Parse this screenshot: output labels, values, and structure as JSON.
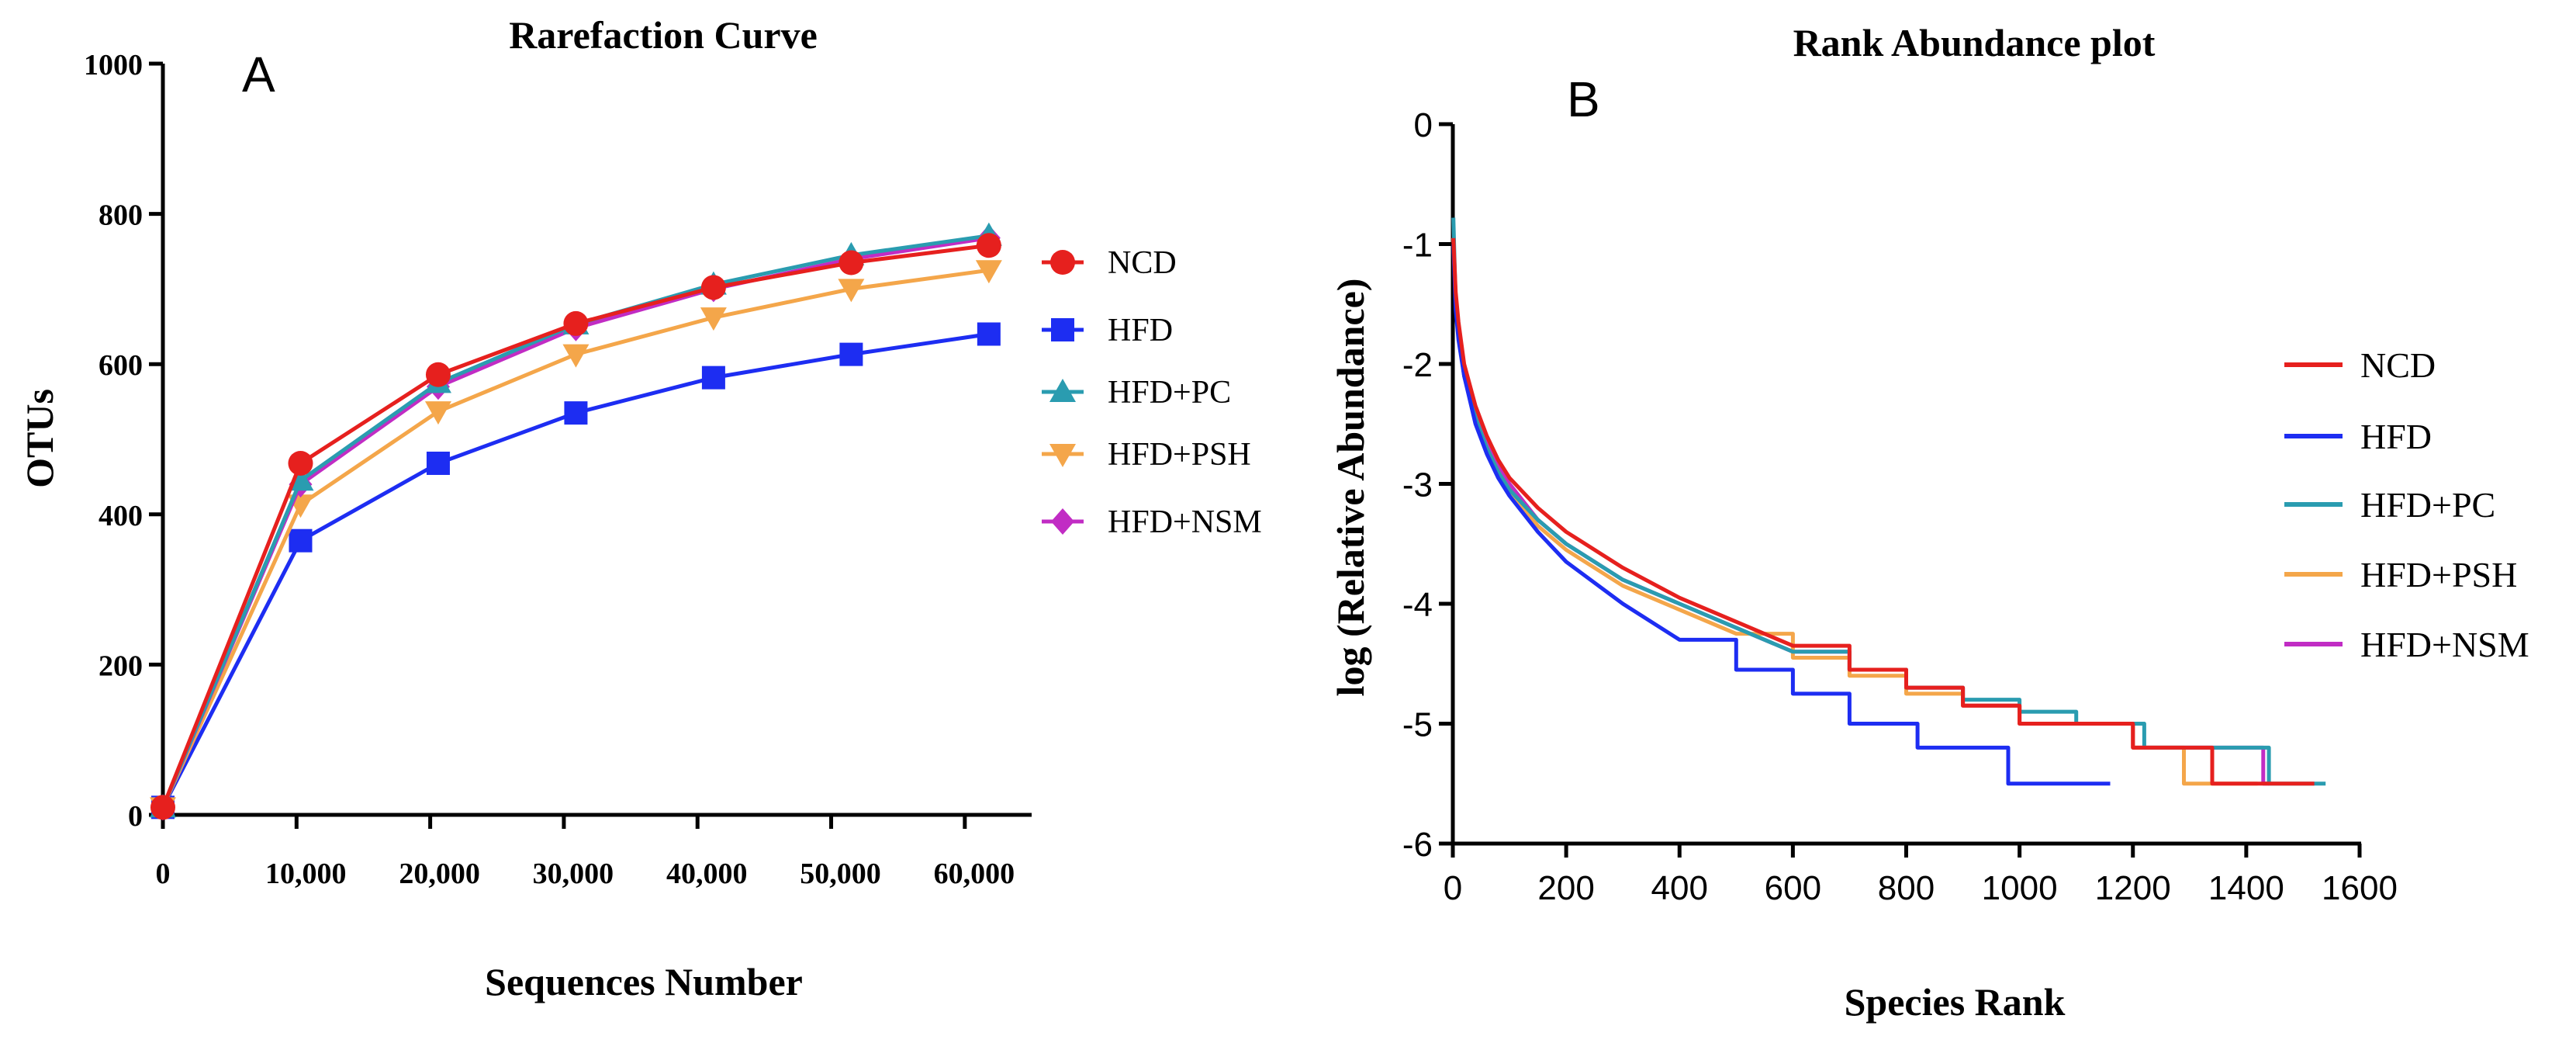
{
  "chart_data": [
    {
      "panel_label": "A",
      "type": "line",
      "title": "Rarefaction Curve",
      "xlabel": "Sequences Number",
      "ylabel": "OTUs",
      "xlim": [
        0,
        65000
      ],
      "ylim": [
        0,
        1000
      ],
      "x_ticks": [
        0,
        10000,
        20000,
        30000,
        40000,
        50000,
        60000
      ],
      "x_tick_labels": [
        "0",
        "10,000",
        "20,000",
        "30,000",
        "40,000",
        "50,000",
        "60,000"
      ],
      "y_ticks": [
        0,
        200,
        400,
        600,
        800,
        1000
      ],
      "y_tick_labels": [
        "0",
        "200",
        "400",
        "600",
        "800",
        "1000"
      ],
      "legend_position": "right",
      "x": [
        0,
        10300,
        20600,
        30900,
        41200,
        51500,
        61800
      ],
      "series": [
        {
          "name": "NCD",
          "color": "#e6201e",
          "marker": "circle",
          "values": [
            10,
            468,
            586,
            654,
            702,
            735,
            758
          ]
        },
        {
          "name": "HFD",
          "color": "#1d2df2",
          "marker": "square",
          "values": [
            10,
            365,
            468,
            535,
            582,
            613,
            640
          ]
        },
        {
          "name": "HFD+PC",
          "color": "#2a9cb0",
          "marker": "triangle-up",
          "values": [
            10,
            445,
            575,
            653,
            706,
            745,
            771
          ]
        },
        {
          "name": "HFD+PSH",
          "color": "#f4a64a",
          "marker": "triangle-down",
          "values": [
            10,
            413,
            537,
            613,
            662,
            700,
            725
          ]
        },
        {
          "name": "HFD+NSM",
          "color": "#c12cc4",
          "marker": "diamond",
          "values": [
            10,
            440,
            570,
            648,
            700,
            740,
            768
          ]
        }
      ]
    },
    {
      "panel_label": "B",
      "type": "line",
      "title": "Rank Abundance plot",
      "xlabel": "Species Rank",
      "ylabel": "log (Relative Abundance)",
      "xlim": [
        0,
        1600
      ],
      "ylim": [
        -6,
        0
      ],
      "x_ticks": [
        0,
        200,
        400,
        600,
        800,
        1000,
        1200,
        1400,
        1600
      ],
      "x_tick_labels": [
        "0",
        "200",
        "400",
        "600",
        "800",
        "1000",
        "1200",
        "1400",
        "1600"
      ],
      "y_ticks": [
        0,
        -1,
        -2,
        -3,
        -4,
        -5,
        -6
      ],
      "y_tick_labels": [
        "0",
        "-1",
        "-2",
        "-3",
        "-4",
        "-5",
        "-6"
      ],
      "legend_position": "right",
      "series": [
        {
          "name": "NCD",
          "color": "#e6201e",
          "x": [
            1,
            5,
            10,
            20,
            40,
            60,
            80,
            100,
            150,
            200,
            300,
            400,
            500,
            600,
            700,
            800,
            900,
            1000,
            1100,
            1200,
            1340,
            1520
          ],
          "values": [
            -0.95,
            -1.4,
            -1.65,
            -2.0,
            -2.35,
            -2.6,
            -2.8,
            -2.95,
            -3.2,
            -3.4,
            -3.7,
            -3.95,
            -4.15,
            -4.35,
            -4.55,
            -4.7,
            -4.85,
            -5.0,
            -5.0,
            -5.2,
            -5.5,
            -5.5
          ]
        },
        {
          "name": "HFD",
          "color": "#1d2df2",
          "x": [
            1,
            5,
            10,
            20,
            40,
            60,
            80,
            100,
            150,
            200,
            300,
            400,
            500,
            600,
            700,
            820,
            980,
            1160
          ],
          "values": [
            -1.0,
            -1.55,
            -1.8,
            -2.1,
            -2.5,
            -2.75,
            -2.95,
            -3.1,
            -3.4,
            -3.65,
            -4.0,
            -4.3,
            -4.55,
            -4.75,
            -5.0,
            -5.2,
            -5.5,
            -5.5
          ]
        },
        {
          "name": "HFD+PC",
          "color": "#2a9cb0",
          "x": [
            1,
            5,
            10,
            20,
            40,
            60,
            80,
            100,
            150,
            200,
            300,
            400,
            500,
            600,
            700,
            800,
            900,
            1000,
            1100,
            1220,
            1440,
            1540
          ],
          "values": [
            -0.78,
            -1.5,
            -1.75,
            -2.1,
            -2.45,
            -2.7,
            -2.9,
            -3.05,
            -3.3,
            -3.5,
            -3.8,
            -4.0,
            -4.2,
            -4.4,
            -4.55,
            -4.7,
            -4.8,
            -4.9,
            -5.0,
            -5.2,
            -5.5,
            -5.5
          ]
        },
        {
          "name": "HFD+PSH",
          "color": "#f4a64a",
          "x": [
            1,
            5,
            10,
            20,
            40,
            60,
            80,
            100,
            150,
            200,
            300,
            400,
            500,
            600,
            700,
            800,
            900,
            1000,
            1100,
            1200,
            1290,
            1420
          ],
          "values": [
            -0.95,
            -1.5,
            -1.75,
            -2.1,
            -2.45,
            -2.7,
            -2.9,
            -3.05,
            -3.35,
            -3.55,
            -3.85,
            -4.05,
            -4.25,
            -4.45,
            -4.6,
            -4.75,
            -4.85,
            -5.0,
            -5.0,
            -5.2,
            -5.5,
            -5.5
          ]
        },
        {
          "name": "HFD+NSM",
          "color": "#c12cc4",
          "x": [
            1,
            5,
            10,
            20,
            40,
            60,
            80,
            100,
            150,
            200,
            300,
            400,
            500,
            600,
            700,
            800,
            900,
            1000,
            1100,
            1200,
            1430,
            1440
          ],
          "values": [
            -0.95,
            -1.45,
            -1.7,
            -2.05,
            -2.4,
            -2.65,
            -2.85,
            -3.0,
            -3.3,
            -3.5,
            -3.8,
            -4.0,
            -4.2,
            -4.4,
            -4.55,
            -4.7,
            -4.85,
            -5.0,
            -5.0,
            -5.2,
            -5.5,
            -5.5
          ]
        }
      ]
    }
  ]
}
